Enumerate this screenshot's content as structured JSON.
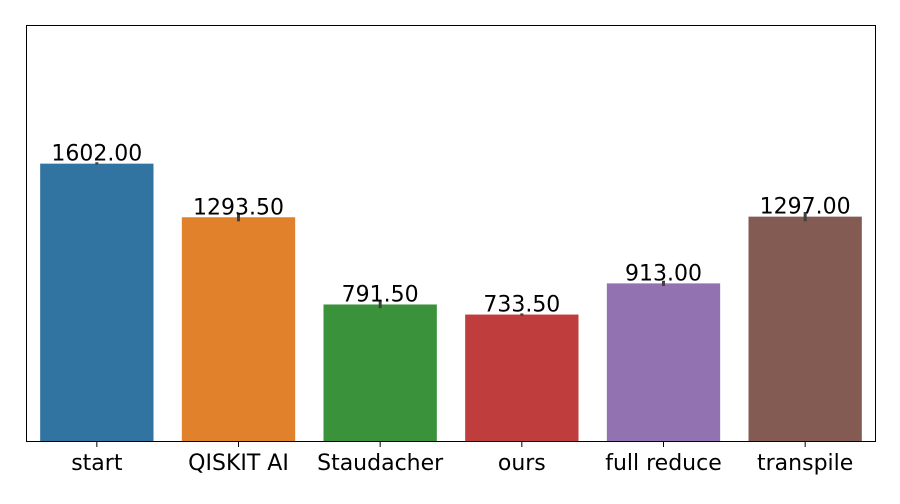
{
  "chart_data": {
    "type": "bar",
    "categories": [
      "start",
      "QISKIT AI",
      "Staudacher",
      "ours",
      "full reduce",
      "transpile"
    ],
    "values": [
      1602.0,
      1293.5,
      791.5,
      733.5,
      913.0,
      1297.0
    ],
    "value_labels": [
      "1602.00",
      "1293.50",
      "791.50",
      "733.50",
      "913.00",
      "1297.00"
    ],
    "error_bars": [
      [
        1597,
        1610
      ],
      [
        1270,
        1318
      ],
      [
        770,
        813
      ],
      [
        727,
        740
      ],
      [
        898,
        928
      ],
      [
        1270,
        1324
      ]
    ],
    "colors": [
      "#3274a1",
      "#e1812c",
      "#3a923a",
      "#c03d3e",
      "#9372b2",
      "#845b53"
    ],
    "title": "",
    "xlabel": "",
    "ylabel": "",
    "ylim": [
      0,
      2400
    ],
    "grid": false,
    "legend": "none",
    "y_ticks_visible": false
  }
}
